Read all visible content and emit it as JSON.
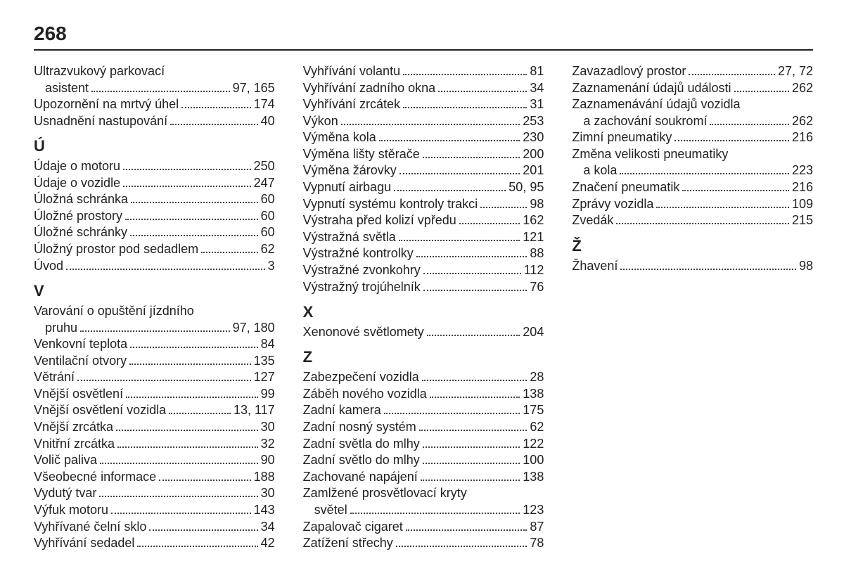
{
  "page_number": "268",
  "columns": [
    [
      {
        "type": "entry",
        "label": "Ultrazvukový parkovací",
        "cont": "asistent",
        "pages": "97, 165"
      },
      {
        "type": "entry",
        "label": "Upozornění na mrtvý úhel",
        "pages": "174"
      },
      {
        "type": "entry",
        "label": "Usnadnění nastupování",
        "pages": "40"
      },
      {
        "type": "letter",
        "label": "Ú"
      },
      {
        "type": "entry",
        "label": "Údaje o motoru",
        "pages": "250"
      },
      {
        "type": "entry",
        "label": "Údaje o vozidle",
        "pages": "247"
      },
      {
        "type": "entry",
        "label": "Úložná schránka",
        "pages": "60"
      },
      {
        "type": "entry",
        "label": "Úložné prostory",
        "pages": "60"
      },
      {
        "type": "entry",
        "label": "Úložné schránky",
        "pages": "60"
      },
      {
        "type": "entry",
        "label": "Úložný prostor pod sedadlem",
        "pages": "62"
      },
      {
        "type": "entry",
        "label": "Úvod",
        "pages": "3"
      },
      {
        "type": "letter",
        "label": "V"
      },
      {
        "type": "entry",
        "label": "Varování o opuštění jízdního",
        "cont": "pruhu",
        "pages": "97, 180"
      },
      {
        "type": "entry",
        "label": "Venkovní teplota",
        "pages": "84"
      },
      {
        "type": "entry",
        "label": "Ventilační otvory",
        "pages": "135"
      },
      {
        "type": "entry",
        "label": "Větrání",
        "pages": "127"
      },
      {
        "type": "entry",
        "label": "Vnější osvětlení",
        "pages": "99"
      },
      {
        "type": "entry",
        "label": "Vnější osvětlení vozidla",
        "pages": "13, 117"
      },
      {
        "type": "entry",
        "label": "Vnější zrcátka",
        "pages": "30"
      },
      {
        "type": "entry",
        "label": "Vnitřní zrcátka",
        "pages": "32"
      },
      {
        "type": "entry",
        "label": "Volič paliva",
        "pages": "90"
      },
      {
        "type": "entry",
        "label": "Všeobecné informace",
        "pages": "188"
      },
      {
        "type": "entry",
        "label": "Vydutý tvar",
        "pages": "30"
      },
      {
        "type": "entry",
        "label": "Výfuk motoru",
        "pages": "143"
      },
      {
        "type": "entry",
        "label": "Vyhřívané čelní sklo",
        "pages": "34"
      },
      {
        "type": "entry",
        "label": "Vyhřívání sedadel",
        "pages": "42"
      }
    ],
    [
      {
        "type": "entry",
        "label": "Vyhřívání volantu",
        "pages": "81"
      },
      {
        "type": "entry",
        "label": "Vyhřívání zadního okna",
        "pages": "34"
      },
      {
        "type": "entry",
        "label": "Vyhřívání zrcátek",
        "pages": "31"
      },
      {
        "type": "entry",
        "label": "Výkon",
        "pages": "253"
      },
      {
        "type": "entry",
        "label": "Výměna kola",
        "pages": "230"
      },
      {
        "type": "entry",
        "label": "Výměna lišty stěrače",
        "pages": "200"
      },
      {
        "type": "entry",
        "label": "Výměna žárovky",
        "pages": "201"
      },
      {
        "type": "entry",
        "label": "Vypnutí airbagu",
        "pages": "50, 95"
      },
      {
        "type": "entry",
        "label": "Vypnutí systému kontroly trakci",
        "pages": "98"
      },
      {
        "type": "entry",
        "label": "Výstraha před kolizí vpředu",
        "pages": "162"
      },
      {
        "type": "entry",
        "label": "Výstražná světla",
        "pages": "121"
      },
      {
        "type": "entry",
        "label": "Výstražné kontrolky",
        "pages": "88"
      },
      {
        "type": "entry",
        "label": "Výstražné zvonkohry",
        "pages": "112"
      },
      {
        "type": "entry",
        "label": "Výstražný trojúhelník",
        "pages": "76"
      },
      {
        "type": "letter",
        "label": "X"
      },
      {
        "type": "entry",
        "label": "Xenonové světlomety",
        "pages": "204"
      },
      {
        "type": "letter",
        "label": "Z"
      },
      {
        "type": "entry",
        "label": "Zabezpečení vozidla",
        "pages": "28"
      },
      {
        "type": "entry",
        "label": "Záběh nového vozidla",
        "pages": "138"
      },
      {
        "type": "entry",
        "label": "Zadní kamera",
        "pages": "175"
      },
      {
        "type": "entry",
        "label": "Zadní nosný systém",
        "pages": "62"
      },
      {
        "type": "entry",
        "label": "Zadní světla do mlhy",
        "pages": "122"
      },
      {
        "type": "entry",
        "label": "Zadní světlo do mlhy",
        "pages": "100"
      },
      {
        "type": "entry",
        "label": "Zachované napájení",
        "pages": "138"
      },
      {
        "type": "entry",
        "label": "Zamlžené prosvětlovací kryty",
        "cont": "světel",
        "pages": "123"
      },
      {
        "type": "entry",
        "label": "Zapalovač cigaret",
        "pages": "87"
      },
      {
        "type": "entry",
        "label": "Zatížení střechy",
        "pages": "78"
      }
    ],
    [
      {
        "type": "entry",
        "label": "Zavazadlový prostor",
        "pages": "27, 72"
      },
      {
        "type": "entry",
        "label": "Zaznamenání údajů události",
        "pages": "262"
      },
      {
        "type": "entry",
        "label": "Zaznamenávání údajů vozidla",
        "cont": "a zachování soukromí",
        "pages": "262"
      },
      {
        "type": "entry",
        "label": "Zimní pneumatiky",
        "pages": "216"
      },
      {
        "type": "entry",
        "label": "Změna velikosti pneumatiky",
        "cont": "a kola",
        "pages": "223"
      },
      {
        "type": "entry",
        "label": "Značení pneumatik",
        "pages": "216"
      },
      {
        "type": "entry",
        "label": "Zprávy vozidla",
        "pages": "109"
      },
      {
        "type": "entry",
        "label": "Zvedák",
        "pages": "215"
      },
      {
        "type": "letter",
        "label": "Ž"
      },
      {
        "type": "entry",
        "label": "Žhavení",
        "pages": "98"
      }
    ]
  ]
}
